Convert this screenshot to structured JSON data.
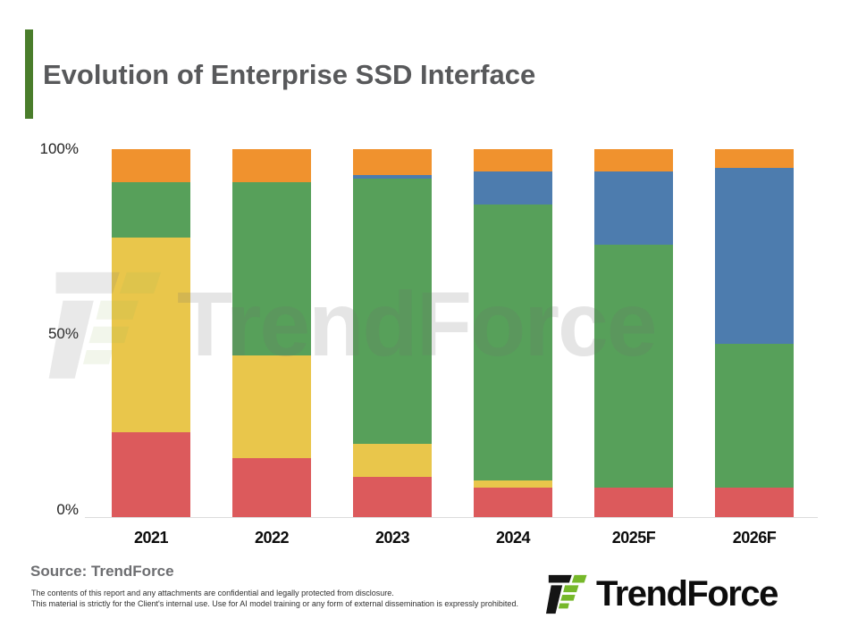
{
  "title": "Evolution of Enterprise SSD Interface",
  "watermark": "TrendForce",
  "source": "Source: TrendForce",
  "disclaimer": {
    "line1": "The contents of this report and any attachments are confidential and legally protected from disclosure.",
    "line2": "This material is strictly for the Client's internal use. Use for AI model training or any form of external dissemination is expressly prohibited."
  },
  "logo_text": "TrendForce",
  "colors": {
    "accent_bar": "#4a7d2b",
    "title_text": "#58595b",
    "logo_black": "#141414",
    "logo_green": "#76b82a",
    "axis_line": "#dcdcdc"
  },
  "chart_data": {
    "type": "bar",
    "subtype": "100%-stacked-column",
    "title": "Evolution of Enterprise SSD Interface",
    "categories": [
      "2021",
      "2022",
      "2023",
      "2024",
      "2025F",
      "2026F"
    ],
    "series": [
      {
        "name": "red-segment",
        "color": "#dc5a5c",
        "values": [
          23,
          16,
          11,
          8,
          8,
          8
        ]
      },
      {
        "name": "yellow-segment",
        "color": "#e9c64b",
        "values": [
          53,
          28,
          9,
          2,
          0,
          0
        ]
      },
      {
        "name": "green-segment",
        "color": "#57a05a",
        "values": [
          15,
          47,
          72,
          75,
          66,
          39
        ]
      },
      {
        "name": "blue-segment",
        "color": "#4d7cae",
        "values": [
          0,
          0,
          1,
          9,
          20,
          48
        ]
      },
      {
        "name": "orange-segment",
        "color": "#f0922e",
        "values": [
          9,
          9,
          7,
          6,
          6,
          5
        ]
      }
    ],
    "stack_order": "bottom-to-top",
    "yticks": [
      "100%",
      "50%",
      "0%"
    ],
    "ylim": [
      0,
      100
    ],
    "xlabel": "",
    "ylabel": "",
    "legend": "none",
    "grid": false
  }
}
